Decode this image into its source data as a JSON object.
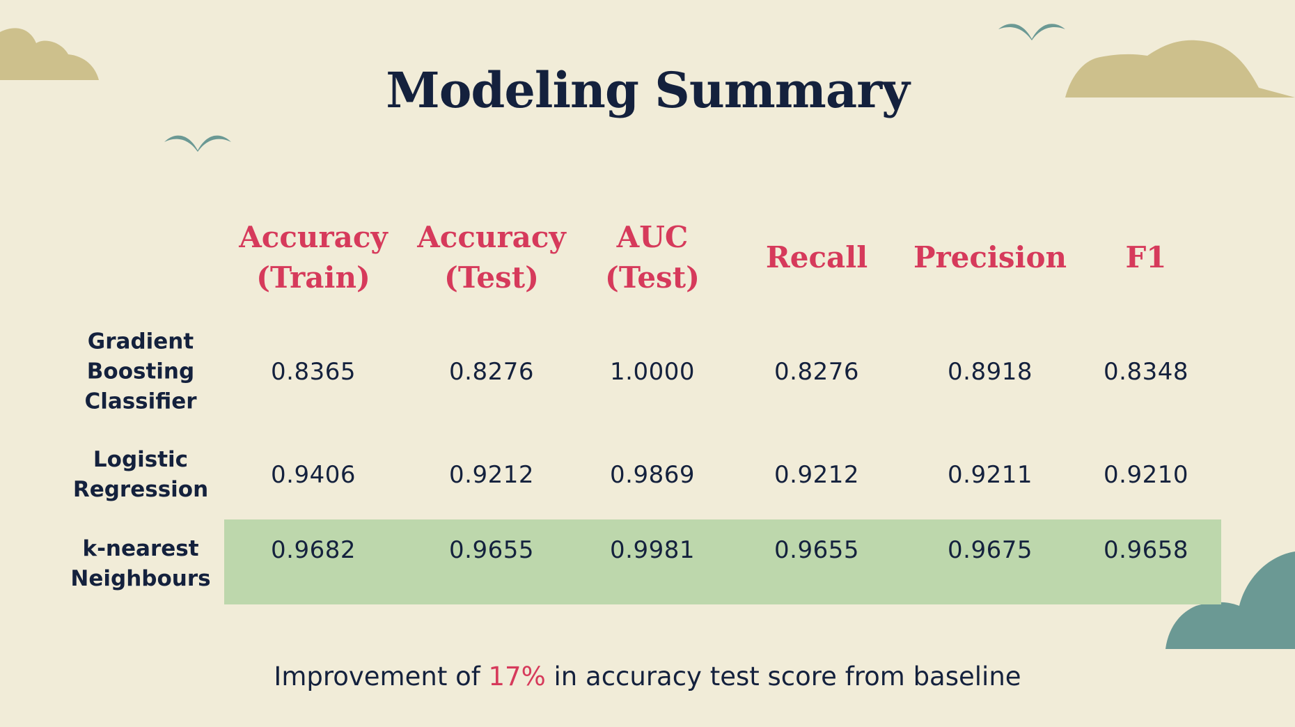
{
  "title": "Modeling Summary",
  "columns": [
    [
      "Accuracy",
      "(Train)"
    ],
    [
      "Accuracy",
      "(Test)"
    ],
    [
      "AUC",
      "(Test)"
    ],
    [
      "Recall"
    ],
    [
      "Precision"
    ],
    [
      "F1"
    ]
  ],
  "rows": [
    {
      "label": [
        "Gradient",
        "Boosting",
        "Classifier"
      ],
      "values": [
        "0.8365",
        "0.8276",
        "1.0000",
        "0.8276",
        "0.8918",
        "0.8348"
      ],
      "highlighted": false
    },
    {
      "label": [
        "Logistic",
        "Regression"
      ],
      "values": [
        "0.9406",
        "0.9212",
        "0.9869",
        "0.9212",
        "0.9211",
        "0.9210"
      ],
      "highlighted": false
    },
    {
      "label": [
        "k-nearest",
        "Neighbours"
      ],
      "values": [
        "0.9682",
        "0.9655",
        "0.9981",
        "0.9655",
        "0.9675",
        "0.9658"
      ],
      "highlighted": true
    }
  ],
  "footer": {
    "prefix": "Improvement of ",
    "highlight": "17%",
    "suffix": " in accuracy test score from baseline"
  },
  "colors": {
    "background": "#f1ecd8",
    "title": "#14213d",
    "header": "#d63a5b",
    "highlight_row": "#bdd7ac",
    "cloud_tan": "#cdc08c",
    "cloud_teal": "#6b9994",
    "bird": "#6b9994"
  }
}
